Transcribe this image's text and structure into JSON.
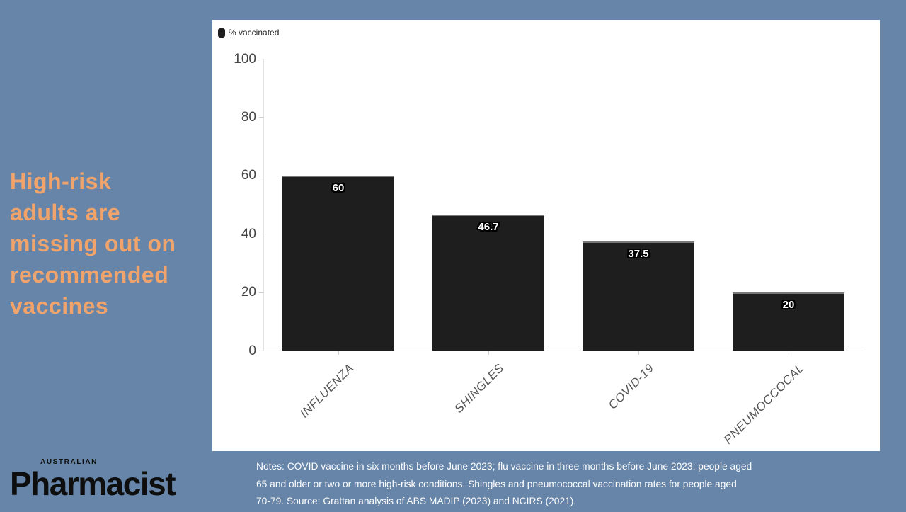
{
  "page": {
    "background_color": "#6785a8",
    "panel_color": "#ffffff"
  },
  "headline": {
    "text": "High-risk\nadults are\nmissing out on\nrecommended\nvaccines",
    "color": "#f0a46c"
  },
  "logo": {
    "kicker": "AUSTRALIAN",
    "name": "Pharmacist"
  },
  "chart_data": {
    "type": "bar",
    "title": "",
    "legend": [
      {
        "label": "% vaccinated",
        "color": "#1e1e1e"
      }
    ],
    "legend_position": "top-left",
    "categories": [
      "INFLUENZA",
      "SHINGLES",
      "COVID-19",
      "PNEUMOCCOCAL"
    ],
    "values": [
      60,
      46.7,
      37.5,
      20
    ],
    "value_labels": [
      "60",
      "46.7",
      "37.5",
      "20"
    ],
    "xlabel": "",
    "ylabel": "",
    "ylim": [
      0,
      100
    ],
    "yticks": [
      0,
      20,
      40,
      60,
      80,
      100
    ],
    "bar_color": "#1e1e1e",
    "grid": false
  },
  "notes": {
    "text": "Notes: COVID vaccine in six months before June 2023; flu vaccine in three months before June 2023: people aged\n65 and older or two or more high-risk conditions. Shingles and pneumococcal vaccination rates for people aged\n70-79. Source: Grattan analysis of ABS MADIP (2023) and NCIRS (2021)."
  }
}
